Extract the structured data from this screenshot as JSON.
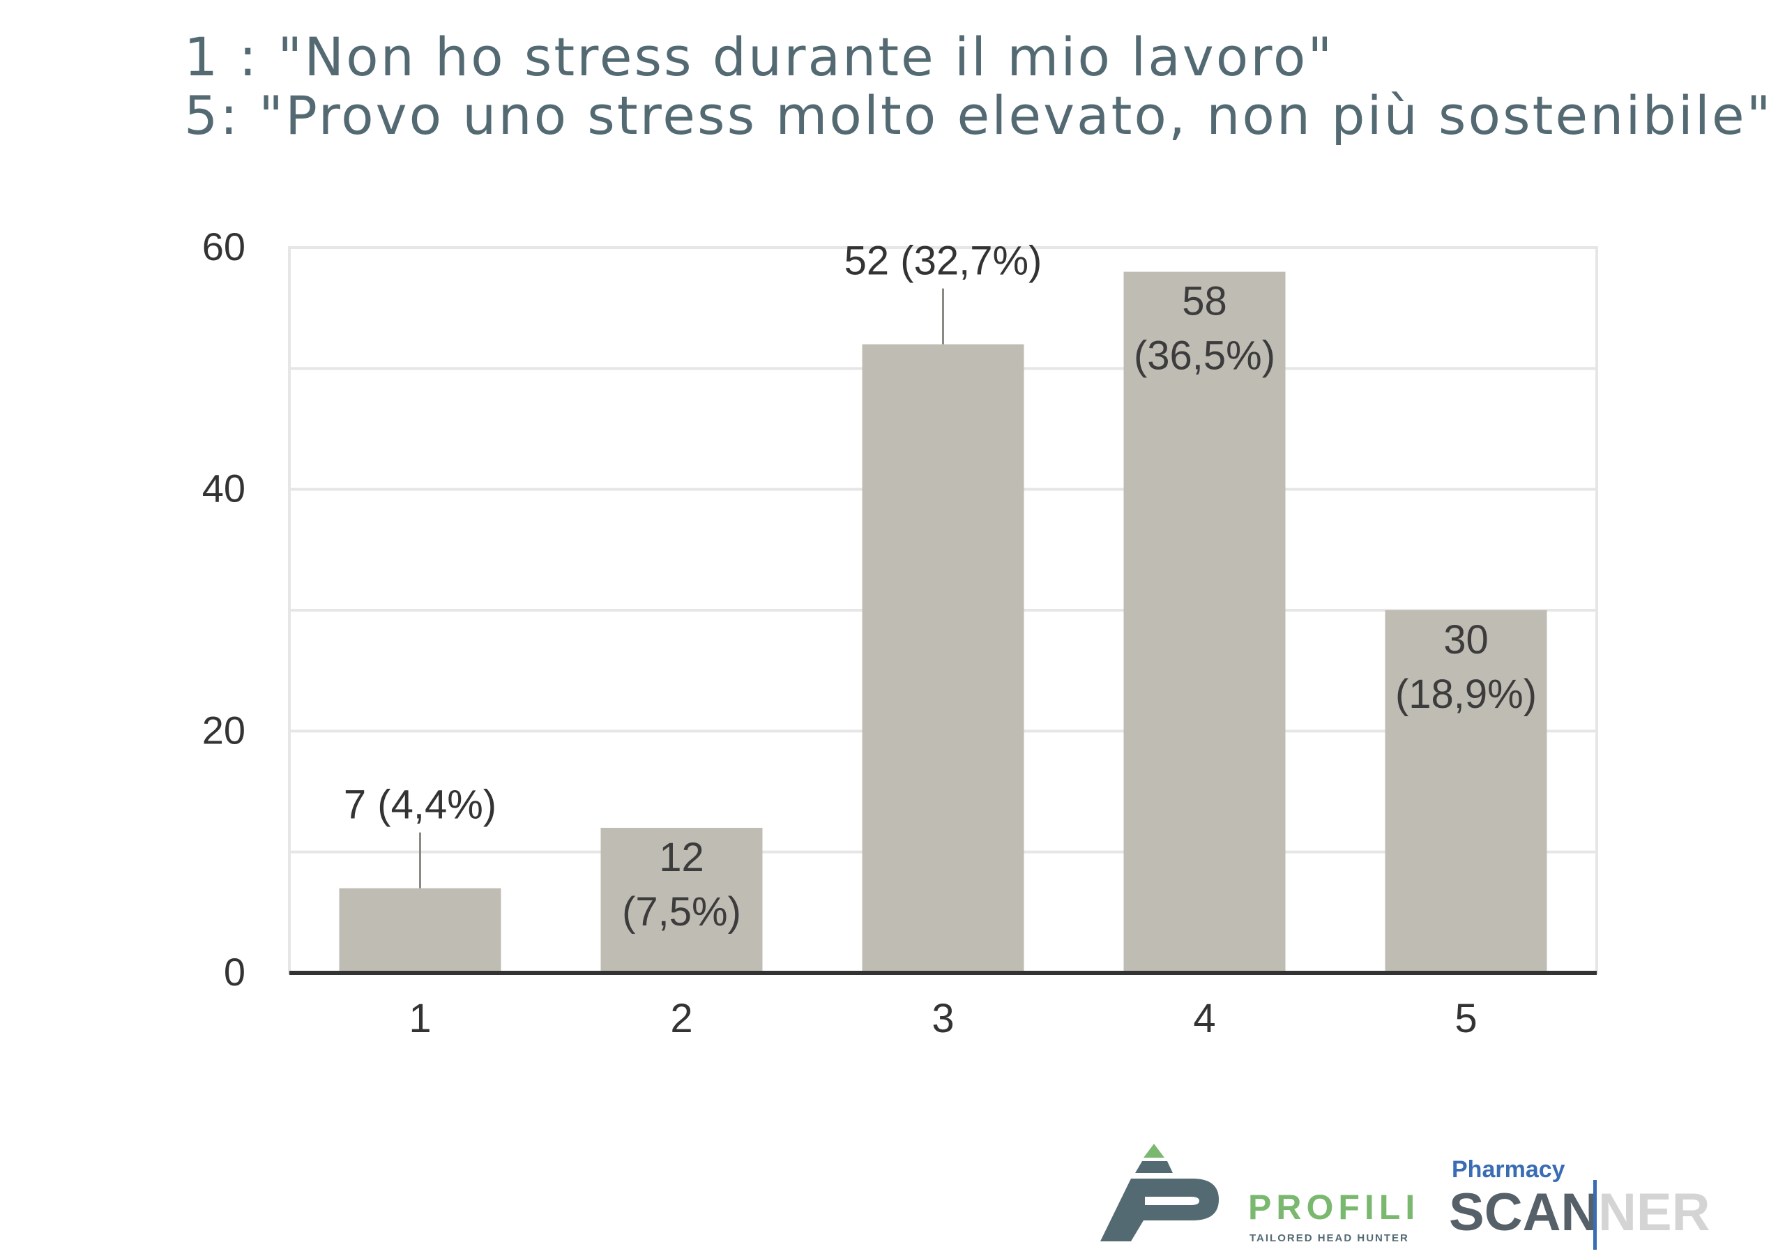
{
  "title_lines": [
    "1 : \"Non ho stress durante il mio lavoro\"",
    "5: \"Provo uno stress molto elevato, non più sostenibile\""
  ],
  "chart_data": {
    "type": "bar",
    "categories": [
      "1",
      "2",
      "3",
      "4",
      "5"
    ],
    "values": [
      7,
      12,
      52,
      58,
      30
    ],
    "data_labels": [
      [
        "7 (4,4%)"
      ],
      [
        "12",
        "(7,5%)"
      ],
      [
        "52 (32,7%)"
      ],
      [
        "58",
        "(36,5%)"
      ],
      [
        "30",
        "(18,9%)"
      ]
    ],
    "ylim": [
      0,
      60
    ],
    "yticks": [
      0,
      20,
      40,
      60
    ],
    "grid": true,
    "colors": {
      "bar": "#bfbcb3",
      "axis": "#333333",
      "grid": "#e6e6e6",
      "text": "#333333"
    }
  },
  "logos": {
    "profili": {
      "name": "PROFILI",
      "tagline": "TAILORED HEAD HUNTER",
      "color": "#7bb86f",
      "mark_color": "#546a73"
    },
    "scanner": {
      "top": "Pharmacy",
      "left": "SCAN",
      "right": "NER",
      "top_color": "#3a6cb4",
      "left_color": "#556068",
      "right_color": "#d4d4d4"
    }
  }
}
